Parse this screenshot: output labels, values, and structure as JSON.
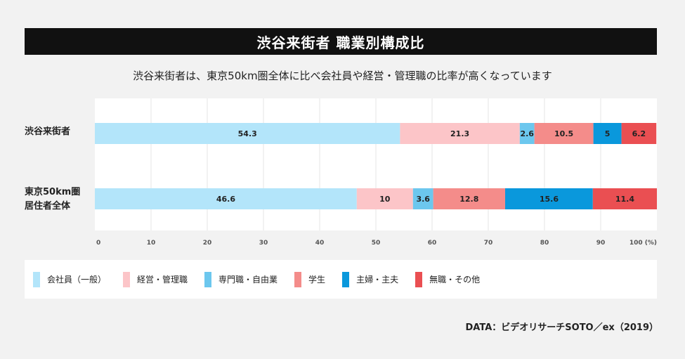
{
  "header": {
    "title": "渋谷来街者 職業別構成比",
    "subtitle": "渋谷来街者は、東京50km圏全体に比べ会社員や経営・管理職の比率が高くなっています"
  },
  "categories_display": [
    {
      "lines": [
        "渋谷来街者"
      ]
    },
    {
      "lines": [
        "東京50km圏",
        "居住者全体"
      ]
    }
  ],
  "source": "DATA：ビデオリサーチSOTO／ex（2019）",
  "chart_data": {
    "type": "bar",
    "orientation": "horizontal",
    "stacked": true,
    "categories": [
      "渋谷来街者",
      "東京50km圏居住者全体"
    ],
    "series": [
      {
        "name": "会社員（一般）",
        "color": "#b3e5fa",
        "values": [
          54.3,
          46.6
        ]
      },
      {
        "name": "経営・管理職",
        "color": "#fcc5c8",
        "values": [
          21.3,
          10
        ]
      },
      {
        "name": "専門職・自由業",
        "color": "#6cc7ee",
        "values": [
          2.6,
          3.6
        ]
      },
      {
        "name": "学生",
        "color": "#f48c8a",
        "values": [
          10.5,
          12.8
        ]
      },
      {
        "name": "主婦・主夫",
        "color": "#0a98dc",
        "values": [
          5,
          15.6
        ]
      },
      {
        "name": "無職・その他",
        "color": "#ea4f52",
        "values": [
          6.2,
          11.4
        ]
      }
    ],
    "data_labels": [
      [
        "54.3",
        "21.3",
        "2.6",
        "10.5",
        "5",
        "6.2"
      ],
      [
        "46.6",
        "10",
        "3.6",
        "12.8",
        "15.6",
        "11.4"
      ]
    ],
    "xlim": [
      0,
      100
    ],
    "xticks": [
      "0",
      "10",
      "20",
      "30",
      "40",
      "50",
      "60",
      "70",
      "80",
      "90",
      "100 (%)"
    ],
    "grid": true,
    "legend_position": "bottom"
  }
}
